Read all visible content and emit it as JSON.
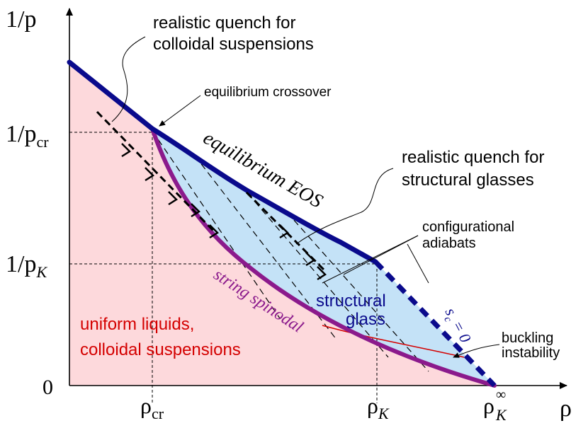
{
  "axes": {
    "y_title": "1/p",
    "x_title": "ρ",
    "y_ticks": {
      "pcr_main": "1/p",
      "pcr_sub": "cr",
      "pK_main": "1/p",
      "pK_sub": "K",
      "zero": "0"
    },
    "x_ticks": {
      "rcr_main": "ρ",
      "rcr_sub": "cr",
      "rK_main": "ρ",
      "rK_sub": "K",
      "rKinf_main": "ρ",
      "rKinf_sub": "K",
      "rKinf_sup": "∞"
    }
  },
  "regions": {
    "liquid_line1": "uniform liquids,",
    "liquid_line2": "colloidal suspensions",
    "glass_line1": "structural",
    "glass_line2": "glass"
  },
  "curves": {
    "eos": "equilibrium EOS",
    "spinodal": "string spinodal",
    "sc_zero": "s",
    "sc_sub": "c",
    "sc_eq": " = 0"
  },
  "annotations": {
    "colloid_quench_line1": "realistic quench for",
    "colloid_quench_line2": "colloidal suspensions",
    "crossover": "equilibrium crossover",
    "glass_quench_line1": "realistic quench for",
    "glass_quench_line2": "structural glasses",
    "adiabats_line1": "configurational",
    "adiabats_line2": "adiabats",
    "buckling_line1": "buckling",
    "buckling_line2": "instability"
  },
  "colors": {
    "liquid_fill": "#fdd9dc",
    "glass_fill": "#c4e2f7",
    "eos_line": "#0a0a8c",
    "spinodal_line": "#8b1a8c",
    "liquid_text": "#d40000",
    "glass_text": "#0a0a8c",
    "buckling_line": "#d40000"
  }
}
